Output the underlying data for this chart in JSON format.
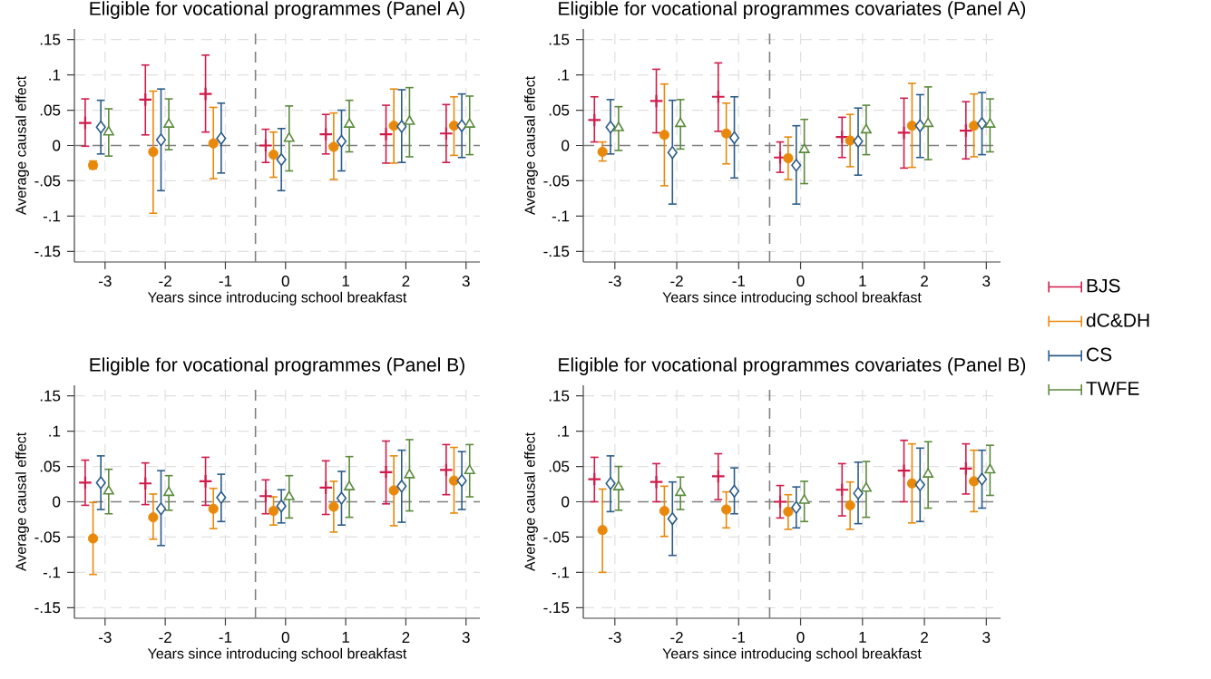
{
  "chart_data": [
    {
      "type": "scatter",
      "title": "Eligible for vocational programmes (Panel A)",
      "xlabel": "Years since introducing school breakfast",
      "ylabel": "Average causal effect",
      "xlim": [
        -3.51,
        3.23
      ],
      "ylim": [
        -0.165,
        0.165
      ],
      "xticks": [
        -3,
        -2,
        -1,
        0,
        1,
        2,
        3
      ],
      "yticks": [
        {
          "value": -0.15,
          "label": "-.15"
        },
        {
          "value": -0.1,
          "label": "-.1"
        },
        {
          "value": -0.05,
          "label": "-.05"
        },
        {
          "value": 0,
          "label": "0"
        },
        {
          "value": 0.05,
          "label": ".05"
        },
        {
          "value": 0.1,
          "label": ".1"
        },
        {
          "value": 0.15,
          "label": ".15"
        }
      ],
      "grid": true,
      "ref_lines": [
        {
          "axis": "x",
          "value": -0.5,
          "color": "#808080",
          "line_style": "dashed"
        },
        {
          "axis": "y",
          "value": 0,
          "color": "#808080",
          "line_style": "dashed"
        }
      ],
      "series": [
        {
          "color": "#d01c4b",
          "marker": "cross",
          "x": [
            -3.33,
            -2.33,
            -1.33,
            -0.33,
            0.67,
            1.67,
            2.67
          ],
          "values": [
            0.032,
            0.065,
            0.073,
            0.0,
            0.016,
            0.016,
            0.017
          ],
          "errors": [
            [
              -0.001,
              0.066
            ],
            [
              0.015,
              0.114
            ],
            [
              0.019,
              0.128
            ],
            [
              -0.024,
              0.023
            ],
            [
              -0.012,
              0.044
            ],
            [
              -0.025,
              0.057
            ],
            [
              -0.024,
              0.058
            ]
          ]
        },
        {
          "color": "#e8890c",
          "marker": "circle",
          "x": [
            -3.2,
            -2.2,
            -1.2,
            -0.2,
            0.8,
            1.8,
            2.8
          ],
          "values": [
            -0.028,
            -0.009,
            0.003,
            -0.013,
            -0.002,
            0.028,
            0.028
          ],
          "errors": [
            [
              -0.033,
              -0.022
            ],
            [
              -0.096,
              0.077
            ],
            [
              -0.047,
              0.054
            ],
            [
              -0.045,
              0.019
            ],
            [
              -0.048,
              0.046
            ],
            [
              -0.025,
              0.08
            ],
            [
              -0.014,
              0.069
            ]
          ]
        },
        {
          "color": "#2b5c8a",
          "marker": "diamond",
          "x": [
            -3.07,
            -2.07,
            -1.07,
            -0.07,
            0.93,
            1.93,
            2.93
          ],
          "values": [
            0.026,
            0.008,
            0.01,
            -0.02,
            0.006,
            0.027,
            0.028
          ],
          "errors": [
            [
              -0.012,
              0.064
            ],
            [
              -0.064,
              0.08
            ],
            [
              -0.039,
              0.06
            ],
            [
              -0.064,
              0.024
            ],
            [
              -0.036,
              0.05
            ],
            [
              -0.024,
              0.079
            ],
            [
              -0.017,
              0.073
            ]
          ]
        },
        {
          "color": "#5b8a3c",
          "marker": "triangle",
          "x": [
            -2.94,
            -1.94,
            -0.94,
            0.06,
            1.06,
            2.06,
            3.06
          ],
          "values": [
            0.019,
            0.03,
            null,
            0.01,
            0.03,
            0.034,
            0.03
          ],
          "errors": [
            [
              -0.015,
              0.052
            ],
            [
              -0.006,
              0.066
            ],
            null,
            [
              -0.036,
              0.056
            ],
            [
              -0.009,
              0.064
            ],
            [
              -0.016,
              0.082
            ],
            [
              -0.013,
              0.07
            ]
          ]
        }
      ]
    },
    {
      "type": "scatter",
      "title": "Eligible for vocational programmes covariates (Panel A)",
      "xlabel": "Years since introducing school breakfast",
      "ylabel": "Average causal effect",
      "xlim": [
        -3.51,
        3.23
      ],
      "ylim": [
        -0.165,
        0.165
      ],
      "xticks": [
        -3,
        -2,
        -1,
        0,
        1,
        2,
        3
      ],
      "yticks": [
        {
          "value": -0.15,
          "label": "-.15"
        },
        {
          "value": -0.1,
          "label": "-.1"
        },
        {
          "value": -0.05,
          "label": "-.05"
        },
        {
          "value": 0,
          "label": "0"
        },
        {
          "value": 0.05,
          "label": ".05"
        },
        {
          "value": 0.1,
          "label": ".1"
        },
        {
          "value": 0.15,
          "label": ".15"
        }
      ],
      "grid": true,
      "legend": "right",
      "ref_lines": [
        {
          "axis": "x",
          "value": -0.5,
          "color": "#808080",
          "line_style": "dashed"
        },
        {
          "axis": "y",
          "value": 0,
          "color": "#808080",
          "line_style": "dashed"
        }
      ],
      "series": [
        {
          "name": "BJS",
          "color": "#d01c4b",
          "marker": "cross",
          "x": [
            -3.33,
            -2.33,
            -1.33,
            -0.33,
            0.67,
            1.67,
            2.67
          ],
          "values": [
            0.036,
            0.063,
            0.069,
            -0.017,
            0.012,
            0.018,
            0.021
          ],
          "errors": [
            [
              0.005,
              0.069
            ],
            [
              0.018,
              0.108
            ],
            [
              0.02,
              0.117
            ],
            [
              -0.038,
              0.005
            ],
            [
              -0.017,
              0.04
            ],
            [
              -0.032,
              0.067
            ],
            [
              -0.019,
              0.062
            ]
          ]
        },
        {
          "name": "dC&DH",
          "color": "#e8890c",
          "marker": "circle",
          "x": [
            -3.2,
            -2.2,
            -1.2,
            -0.2,
            0.8,
            1.8,
            2.8
          ],
          "values": [
            -0.009,
            0.015,
            0.017,
            -0.018,
            0.007,
            0.028,
            0.028
          ],
          "errors": [
            [
              -0.022,
              0.005
            ],
            [
              -0.057,
              0.087
            ],
            [
              -0.026,
              0.06
            ],
            [
              -0.048,
              0.012
            ],
            [
              -0.03,
              0.044
            ],
            [
              -0.031,
              0.088
            ],
            [
              -0.016,
              0.073
            ]
          ]
        },
        {
          "name": "CS",
          "color": "#2b5c8a",
          "marker": "diamond",
          "x": [
            -3.07,
            -2.07,
            -1.07,
            -0.07,
            0.93,
            1.93,
            2.93
          ],
          "values": [
            0.026,
            -0.01,
            0.011,
            -0.028,
            0.006,
            0.028,
            0.031
          ],
          "errors": [
            [
              -0.012,
              0.065
            ],
            [
              -0.083,
              0.064
            ],
            [
              -0.046,
              0.069
            ],
            [
              -0.083,
              0.028
            ],
            [
              -0.042,
              0.053
            ],
            [
              -0.017,
              0.072
            ],
            [
              -0.013,
              0.075
            ]
          ]
        },
        {
          "name": "TWFE",
          "color": "#5b8a3c",
          "marker": "triangle",
          "x": [
            -2.94,
            -1.94,
            -0.94,
            0.06,
            1.06,
            2.06,
            3.06
          ],
          "values": [
            0.025,
            0.031,
            null,
            -0.006,
            0.022,
            0.031,
            0.03
          ],
          "errors": [
            [
              -0.007,
              0.055
            ],
            [
              -0.005,
              0.065
            ],
            null,
            [
              -0.054,
              0.037
            ],
            [
              -0.013,
              0.057
            ],
            [
              -0.02,
              0.083
            ],
            [
              -0.009,
              0.066
            ]
          ]
        }
      ]
    },
    {
      "type": "scatter",
      "title": "Eligible for vocational programmes (Panel B)",
      "xlabel": "Years since introducing school breakfast",
      "ylabel": "Average causal effect",
      "xlim": [
        -3.51,
        3.23
      ],
      "ylim": [
        -0.165,
        0.165
      ],
      "xticks": [
        -3,
        -2,
        -1,
        0,
        1,
        2,
        3
      ],
      "yticks": [
        {
          "value": -0.15,
          "label": "-.15"
        },
        {
          "value": -0.1,
          "label": "-.1"
        },
        {
          "value": -0.05,
          "label": "-.05"
        },
        {
          "value": 0,
          "label": "0"
        },
        {
          "value": 0.05,
          "label": ".05"
        },
        {
          "value": 0.1,
          "label": ".1"
        },
        {
          "value": 0.15,
          "label": ".15"
        }
      ],
      "grid": true,
      "ref_lines": [
        {
          "axis": "x",
          "value": -0.5,
          "color": "#808080",
          "line_style": "dashed"
        },
        {
          "axis": "y",
          "value": 0,
          "color": "#808080",
          "line_style": "dashed"
        }
      ],
      "series": [
        {
          "color": "#d01c4b",
          "marker": "cross",
          "x": [
            -3.33,
            -2.33,
            -1.33,
            -0.33,
            0.67,
            1.67,
            2.67
          ],
          "values": [
            0.027,
            0.026,
            0.029,
            0.008,
            0.02,
            0.042,
            0.045
          ],
          "errors": [
            [
              -0.005,
              0.059
            ],
            [
              -0.004,
              0.055
            ],
            [
              -0.005,
              0.063
            ],
            [
              -0.017,
              0.031
            ],
            [
              -0.018,
              0.058
            ],
            [
              -0.003,
              0.086
            ],
            [
              0.01,
              0.081
            ]
          ]
        },
        {
          "color": "#e8890c",
          "marker": "circle",
          "x": [
            -3.2,
            -2.2,
            -1.2,
            -0.2,
            0.8,
            1.8,
            2.8
          ],
          "values": [
            -0.052,
            -0.022,
            -0.01,
            -0.013,
            -0.007,
            0.016,
            0.03
          ],
          "errors": [
            [
              -0.103,
              -0.001
            ],
            [
              -0.053,
              0.011
            ],
            [
              -0.038,
              0.019
            ],
            [
              -0.033,
              0.007
            ],
            [
              -0.043,
              0.029
            ],
            [
              -0.034,
              0.065
            ],
            [
              -0.016,
              0.077
            ]
          ]
        },
        {
          "color": "#2b5c8a",
          "marker": "diamond",
          "x": [
            -3.07,
            -2.07,
            -1.07,
            -0.07,
            0.93,
            1.93,
            2.93
          ],
          "values": [
            0.027,
            -0.01,
            0.006,
            -0.006,
            0.005,
            0.022,
            0.03
          ],
          "errors": [
            [
              -0.011,
              0.065
            ],
            [
              -0.062,
              0.044
            ],
            [
              -0.028,
              0.039
            ],
            [
              -0.03,
              0.017
            ],
            [
              -0.033,
              0.043
            ],
            [
              -0.029,
              0.073
            ],
            [
              -0.011,
              0.071
            ]
          ]
        },
        {
          "color": "#5b8a3c",
          "marker": "triangle",
          "x": [
            -2.94,
            -1.94,
            -0.94,
            0.06,
            1.06,
            2.06,
            3.06
          ],
          "values": [
            0.015,
            0.013,
            null,
            0.007,
            0.021,
            0.038,
            0.044
          ],
          "errors": [
            [
              -0.017,
              0.046
            ],
            [
              -0.012,
              0.037
            ],
            null,
            [
              -0.023,
              0.037
            ],
            [
              -0.022,
              0.064
            ],
            [
              -0.013,
              0.088
            ],
            [
              0.007,
              0.081
            ]
          ]
        }
      ]
    },
    {
      "type": "scatter",
      "title": "Eligible for vocational programmes covariates (Panel B)",
      "xlabel": "Years since introducing school breakfast",
      "ylabel": "Average causal effect",
      "xlim": [
        -3.51,
        3.23
      ],
      "ylim": [
        -0.165,
        0.165
      ],
      "xticks": [
        -3,
        -2,
        -1,
        0,
        1,
        2,
        3
      ],
      "yticks": [
        {
          "value": -0.15,
          "label": "-.15"
        },
        {
          "value": -0.1,
          "label": "-.1"
        },
        {
          "value": -0.05,
          "label": "-.05"
        },
        {
          "value": 0,
          "label": "0"
        },
        {
          "value": 0.05,
          "label": ".05"
        },
        {
          "value": 0.1,
          "label": ".1"
        },
        {
          "value": 0.15,
          "label": ".15"
        }
      ],
      "grid": true,
      "ref_lines": [
        {
          "axis": "x",
          "value": -0.5,
          "color": "#808080",
          "line_style": "dashed"
        },
        {
          "axis": "y",
          "value": 0,
          "color": "#808080",
          "line_style": "dashed"
        }
      ],
      "series": [
        {
          "color": "#d01c4b",
          "marker": "cross",
          "x": [
            -3.33,
            -2.33,
            -1.33,
            -0.33,
            0.67,
            1.67,
            2.67
          ],
          "values": [
            0.032,
            0.028,
            0.036,
            0.0,
            0.017,
            0.044,
            0.047
          ],
          "errors": [
            [
              0.0,
              0.063
            ],
            [
              0.0,
              0.054
            ],
            [
              0.003,
              0.068
            ],
            [
              -0.023,
              0.023
            ],
            [
              -0.02,
              0.054
            ],
            [
              0.0,
              0.087
            ],
            [
              0.011,
              0.082
            ]
          ]
        },
        {
          "color": "#e8890c",
          "marker": "circle",
          "x": [
            -3.2,
            -2.2,
            -1.2,
            -0.2,
            0.8,
            1.8,
            2.8
          ],
          "values": [
            -0.04,
            -0.013,
            -0.011,
            -0.014,
            -0.005,
            0.026,
            0.029
          ],
          "errors": [
            [
              -0.1,
              0.018
            ],
            [
              -0.049,
              0.022
            ],
            [
              -0.037,
              0.014
            ],
            [
              -0.039,
              0.01
            ],
            [
              -0.039,
              0.028
            ],
            [
              -0.03,
              0.082
            ],
            [
              -0.014,
              0.073
            ]
          ]
        },
        {
          "color": "#2b5c8a",
          "marker": "diamond",
          "x": [
            -3.07,
            -2.07,
            -1.07,
            -0.07,
            0.93,
            1.93,
            2.93
          ],
          "values": [
            0.026,
            -0.024,
            0.015,
            -0.008,
            0.012,
            0.024,
            0.032
          ],
          "errors": [
            [
              -0.014,
              0.065
            ],
            [
              -0.076,
              0.028
            ],
            [
              -0.017,
              0.048
            ],
            [
              -0.037,
              0.021
            ],
            [
              -0.031,
              0.056
            ],
            [
              -0.028,
              0.076
            ],
            [
              -0.009,
              0.073
            ]
          ]
        },
        {
          "color": "#5b8a3c",
          "marker": "triangle",
          "x": [
            -2.94,
            -1.94,
            -0.94,
            0.06,
            1.06,
            2.06,
            3.06
          ],
          "values": [
            0.021,
            0.013,
            null,
            0.002,
            0.019,
            0.039,
            0.045
          ],
          "errors": [
            [
              -0.012,
              0.05
            ],
            [
              -0.011,
              0.035
            ],
            null,
            [
              -0.028,
              0.029
            ],
            [
              -0.022,
              0.057
            ],
            [
              -0.009,
              0.085
            ],
            [
              0.009,
              0.08
            ]
          ]
        }
      ]
    }
  ]
}
